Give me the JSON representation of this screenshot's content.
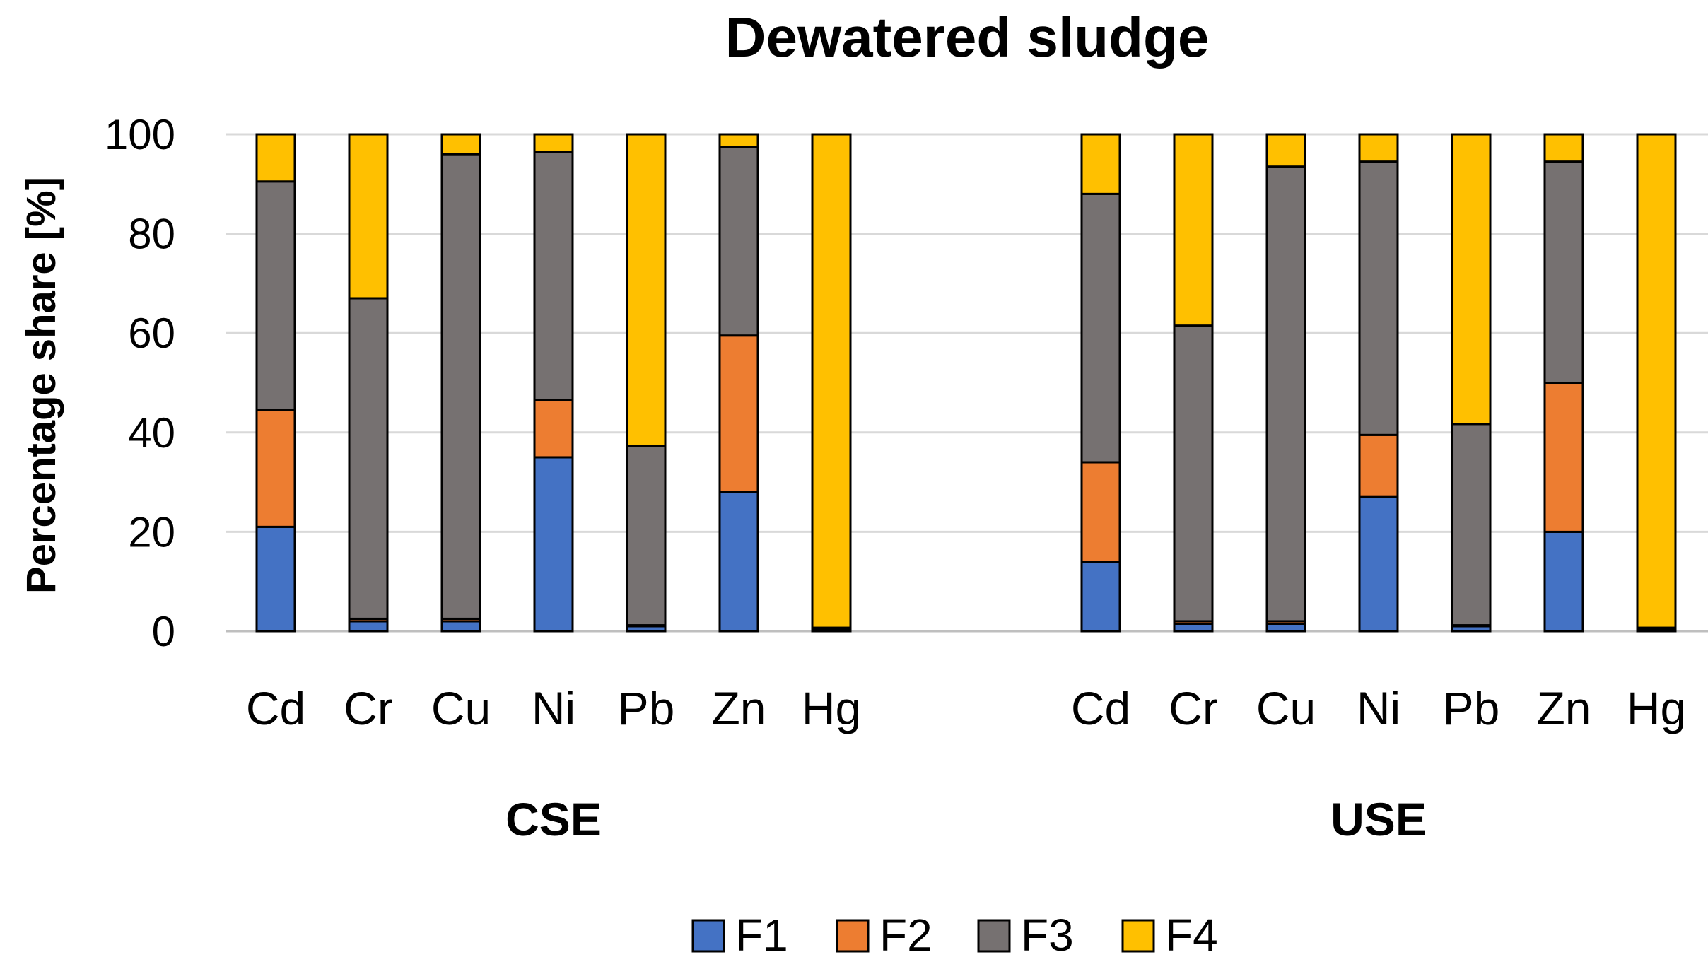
{
  "chart_data": {
    "type": "bar",
    "stacked": true,
    "title": "Dewatered sludge",
    "ylabel": "Percentage share [%]",
    "xlabel": "",
    "ylim": [
      0,
      100
    ],
    "yticks": [
      0,
      20,
      40,
      60,
      80,
      100
    ],
    "grid": true,
    "legend_position": "bottom",
    "groups": [
      {
        "name": "CSE",
        "categories": [
          "Cd",
          "Cr",
          "Cu",
          "Ni",
          "Pb",
          "Zn",
          "Hg"
        ],
        "series": [
          {
            "name": "F1",
            "values": [
              21,
              2,
              2,
              35,
              1,
              28,
              0.5
            ]
          },
          {
            "name": "F2",
            "values": [
              23.5,
              0.5,
              0.5,
              11.5,
              0.2,
              31.5,
              0.2
            ]
          },
          {
            "name": "F3",
            "values": [
              46,
              64.5,
              93.5,
              50,
              36,
              38,
              0
            ]
          },
          {
            "name": "F4",
            "values": [
              9.5,
              33,
              4,
              3.5,
              62.8,
              2.5,
              99.3
            ]
          }
        ]
      },
      {
        "name": "USE",
        "categories": [
          "Cd",
          "Cr",
          "Cu",
          "Ni",
          "Pb",
          "Zn",
          "Hg"
        ],
        "series": [
          {
            "name": "F1",
            "values": [
              14,
              1.5,
              1.5,
              27,
              1,
              20,
              0.5
            ]
          },
          {
            "name": "F2",
            "values": [
              20,
              0.5,
              0.5,
              12.5,
              0.2,
              30,
              0.2
            ]
          },
          {
            "name": "F3",
            "values": [
              54,
              59.5,
              91.5,
              55,
              40.5,
              44.5,
              0
            ]
          },
          {
            "name": "F4",
            "values": [
              12,
              38.5,
              6.5,
              5.5,
              58.3,
              5.5,
              99.3
            ]
          }
        ]
      }
    ],
    "legend": [
      "F1",
      "F2",
      "F3",
      "F4"
    ],
    "colors": {
      "F1": "#4472c4",
      "F2": "#ed7d31",
      "F3": "#767171",
      "F4": "#ffc000"
    }
  }
}
